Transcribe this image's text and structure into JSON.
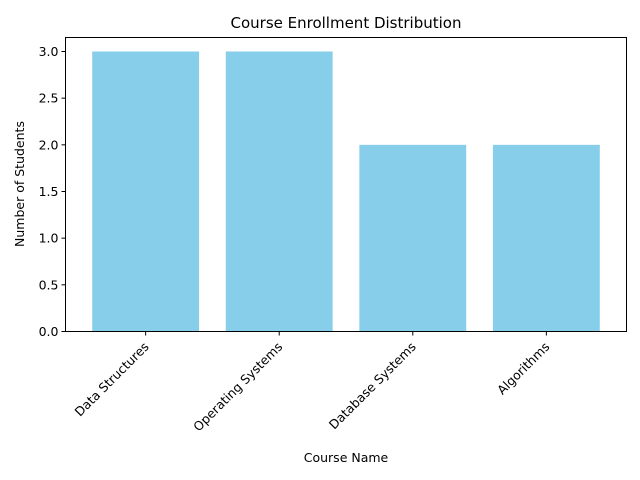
{
  "chart_data": {
    "type": "bar",
    "title": "Course Enrollment Distribution",
    "xlabel": "Course Name",
    "ylabel": "Number of Students",
    "categories": [
      "Data Structures",
      "Operating Systems",
      "Database Systems",
      "Algorithms"
    ],
    "values": [
      3,
      3,
      2,
      2
    ],
    "ylim": [
      0,
      3.15
    ],
    "yticks": [
      0.0,
      0.5,
      1.0,
      1.5,
      2.0,
      2.5,
      3.0
    ],
    "ytick_labels": [
      "0.0",
      "0.5",
      "1.0",
      "1.5",
      "2.0",
      "2.5",
      "3.0"
    ],
    "bar_color": "#87ceeb",
    "grid": false,
    "legend": "none"
  }
}
